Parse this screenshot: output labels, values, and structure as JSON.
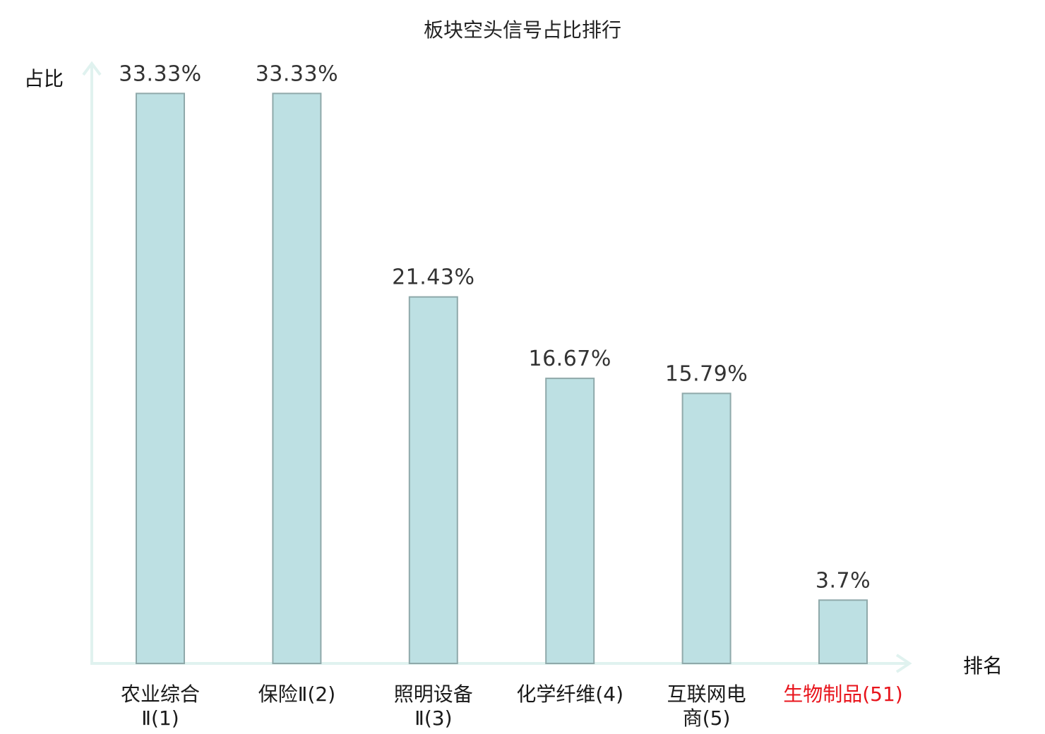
{
  "chart_data": {
    "type": "bar",
    "title": "板块空头信号占比排行",
    "ylabel": "占比",
    "xlabel": "排名",
    "categories": [
      {
        "lines": [
          "农业综合",
          "Ⅱ(1)"
        ],
        "highlight": false
      },
      {
        "lines": [
          "保险Ⅱ(2)"
        ],
        "highlight": false
      },
      {
        "lines": [
          "照明设备",
          "Ⅱ(3)"
        ],
        "highlight": false
      },
      {
        "lines": [
          "化学纤维(4)"
        ],
        "highlight": false
      },
      {
        "lines": [
          "互联网电",
          "商(5)"
        ],
        "highlight": false
      },
      {
        "lines": [
          "生物制品(51)"
        ],
        "highlight": true
      }
    ],
    "values": [
      33.33,
      33.33,
      21.43,
      16.67,
      15.79,
      3.7
    ],
    "value_labels": [
      "33.33%",
      "33.33%",
      "21.43%",
      "16.67%",
      "15.79%",
      "3.7%"
    ],
    "ylim": [
      0,
      34.5
    ],
    "grid": false,
    "legend": "none",
    "colors": {
      "bar_fill": "#bde0e3",
      "bar_stroke": "#8fa9aa",
      "axis": "#e0f2ef",
      "text": "#333333",
      "highlight_text": "#e8141c"
    }
  }
}
